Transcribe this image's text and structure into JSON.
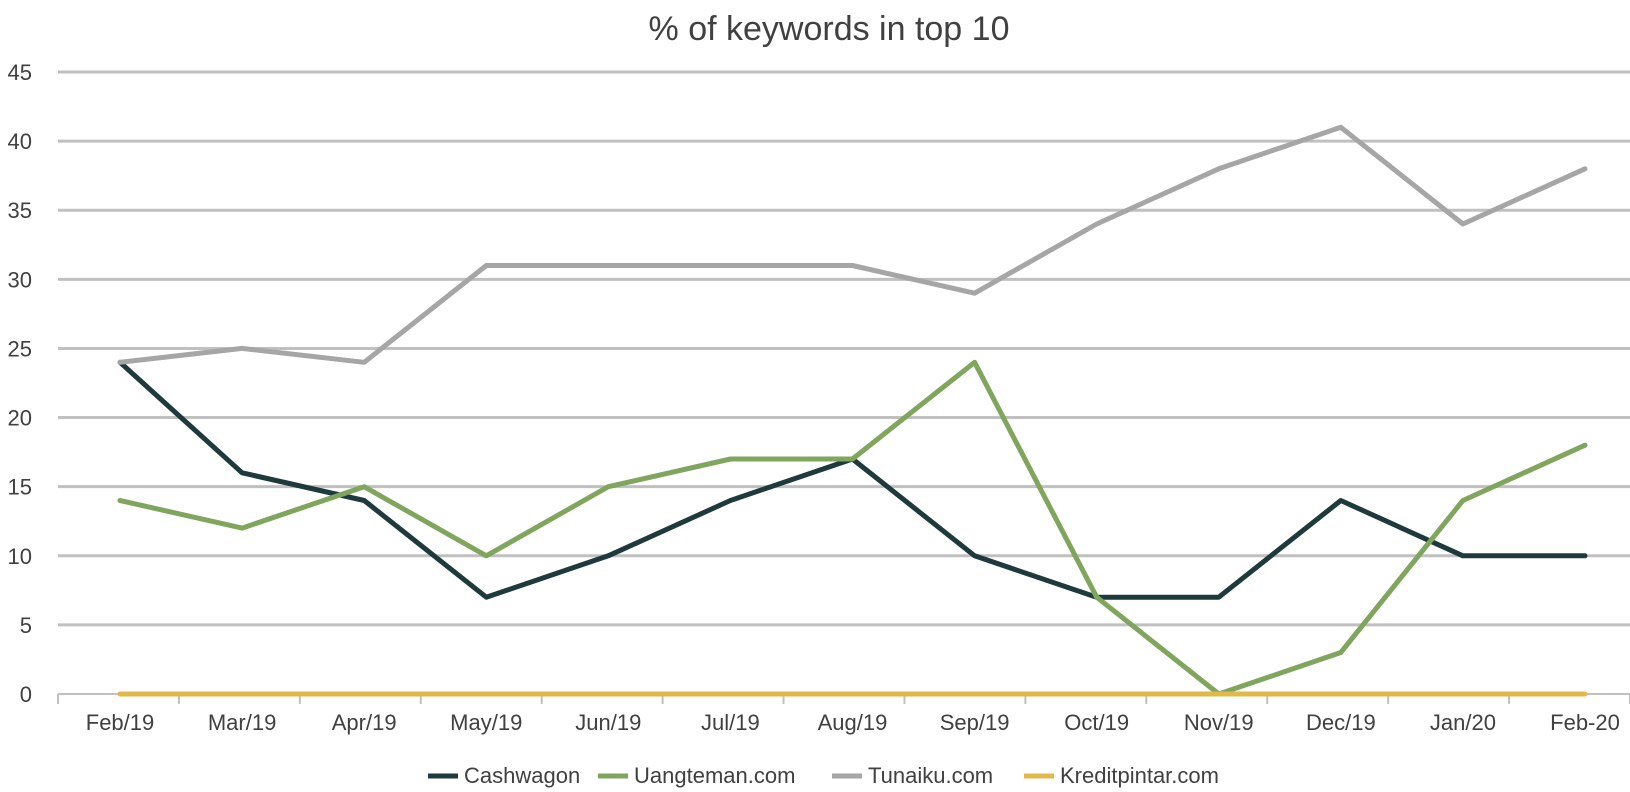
{
  "chart_data": {
    "type": "line",
    "title": "% of keywords in top 10",
    "xlabel": "",
    "ylabel": "",
    "categories": [
      "Feb/19",
      "Mar/19",
      "Apr/19",
      "May/19",
      "Jun/19",
      "Jul/19",
      "Aug/19",
      "Sep/19",
      "Oct/19",
      "Nov/19",
      "Dec/19",
      "Jan/20",
      "Feb-20"
    ],
    "ylim": [
      0,
      45
    ],
    "yticks": [
      "0",
      "5",
      "10",
      "15",
      "20",
      "25",
      "30",
      "35",
      "40",
      "45"
    ],
    "grid": "horizontal",
    "legend_position": "bottom",
    "series": [
      {
        "name": "Cashwagon",
        "color": "#1f3a3d",
        "values": [
          24,
          16,
          14,
          7,
          10,
          14,
          17,
          10,
          7,
          7,
          14,
          10,
          10
        ]
      },
      {
        "name": "Uangteman.com",
        "color": "#7fa65c",
        "values": [
          14,
          12,
          15,
          10,
          15,
          17,
          17,
          24,
          7,
          0,
          3,
          14,
          18
        ]
      },
      {
        "name": "Tunaiku.com",
        "color": "#a6a6a6",
        "values": [
          24,
          25,
          24,
          31,
          31,
          31,
          31,
          29,
          34,
          38,
          41,
          34,
          38
        ]
      },
      {
        "name": "Kreditpintar.com",
        "color": "#e3b84a",
        "values": [
          0,
          0,
          0,
          0,
          0,
          0,
          0,
          0,
          0,
          0,
          0,
          0,
          0
        ]
      }
    ]
  }
}
